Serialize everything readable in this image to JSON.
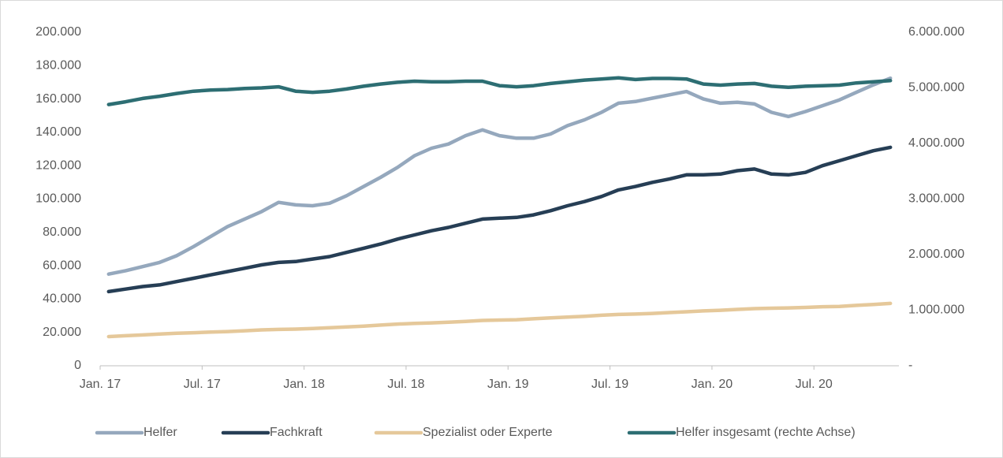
{
  "chart_data": {
    "type": "line",
    "categories": [
      "Jan. 17",
      null,
      null,
      null,
      null,
      null,
      "Jul. 17",
      null,
      null,
      null,
      null,
      null,
      "Jan. 18",
      null,
      null,
      null,
      null,
      null,
      "Jul. 18",
      null,
      null,
      null,
      null,
      null,
      "Jan. 19",
      null,
      null,
      null,
      null,
      null,
      "Jul. 19",
      null,
      null,
      null,
      null,
      null,
      "Jan. 20",
      null,
      null,
      null,
      null,
      null,
      "Jul. 20",
      null,
      null,
      null,
      null
    ],
    "series": [
      {
        "name": "Helfer",
        "color": "#95a8bd",
        "values": [
          55000,
          57000,
          59500,
          62000,
          66000,
          71500,
          77500,
          83500,
          88000,
          92500,
          98000,
          96500,
          96000,
          97500,
          102000,
          107500,
          113000,
          119000,
          126000,
          130500,
          133000,
          138000,
          141500,
          138000,
          136500,
          136500,
          139000,
          144000,
          147500,
          152000,
          157500,
          158500,
          160500,
          162500,
          164500,
          160000,
          157500,
          158000,
          157000,
          152000,
          149500,
          152500,
          156000,
          159500,
          164000,
          168500,
          172500
        ]
      },
      {
        "name": "Fachkraft",
        "color": "#263e55",
        "values": [
          44500,
          46000,
          47500,
          48500,
          50500,
          52500,
          54500,
          56500,
          58500,
          60500,
          62000,
          62500,
          64000,
          65500,
          68000,
          70500,
          73000,
          76000,
          78500,
          81000,
          83000,
          85500,
          88000,
          88500,
          89000,
          90500,
          93000,
          96000,
          98500,
          101500,
          105500,
          107500,
          110000,
          112000,
          114500,
          114500,
          115000,
          117000,
          118000,
          115000,
          114500,
          116000,
          120000,
          123000,
          126000,
          129000,
          131000
        ]
      },
      {
        "name": "Spezialist oder Experte",
        "color": "#e5c89a",
        "values": [
          17500,
          18000,
          18500,
          19000,
          19500,
          19800,
          20200,
          20500,
          21000,
          21500,
          21800,
          22000,
          22300,
          22800,
          23300,
          23800,
          24400,
          25000,
          25400,
          25700,
          26100,
          26600,
          27200,
          27400,
          27600,
          28200,
          28700,
          29200,
          29700,
          30300,
          30800,
          31000,
          31400,
          31900,
          32400,
          32900,
          33300,
          33800,
          34300,
          34500,
          34700,
          35000,
          35400,
          35600,
          36200,
          36800,
          37400
        ]
      },
      {
        "name": "Helfer insgesamt (rechte Achse)",
        "color": "#2d6e73",
        "axis": "y2",
        "values": [
          4700000,
          4750000,
          4810000,
          4850000,
          4900000,
          4940000,
          4960000,
          4970000,
          4990000,
          5000000,
          5020000,
          4940000,
          4920000,
          4940000,
          4980000,
          5030000,
          5070000,
          5100000,
          5120000,
          5110000,
          5110000,
          5120000,
          5120000,
          5040000,
          5020000,
          5040000,
          5080000,
          5110000,
          5140000,
          5160000,
          5180000,
          5150000,
          5170000,
          5170000,
          5160000,
          5070000,
          5050000,
          5070000,
          5080000,
          5030000,
          5010000,
          5030000,
          5040000,
          5050000,
          5090000,
          5110000,
          5130000
        ]
      }
    ],
    "ylim": [
      0,
      200000
    ],
    "yticks": [
      0,
      {
        "value": 20000,
        "label": "20.000"
      },
      {
        "value": 40000,
        "label": "40.000"
      },
      {
        "value": 60000,
        "label": "60.000"
      },
      {
        "value": 80000,
        "label": "80.000"
      },
      {
        "value": 100000,
        "label": "100.000"
      },
      {
        "value": 120000,
        "label": "120.000"
      },
      {
        "value": 140000,
        "label": "140.000"
      },
      {
        "value": 160000,
        "label": "160.000"
      },
      {
        "value": 180000,
        "label": "180.000"
      },
      {
        "value": 200000,
        "label": "200.000"
      }
    ],
    "y2lim": [
      0,
      6000000
    ],
    "y2ticks": [
      {
        "value": 0,
        "label": "-"
      },
      {
        "value": 1000000,
        "label": "1.000.000"
      },
      {
        "value": 2000000,
        "label": "2.000.000"
      },
      {
        "value": 3000000,
        "label": "3.000.000"
      },
      {
        "value": 4000000,
        "label": "4.000.000"
      },
      {
        "value": 5000000,
        "label": "5.000.000"
      },
      {
        "value": 6000000,
        "label": "6.000.000"
      }
    ],
    "grid": false,
    "legend": "bottom"
  }
}
